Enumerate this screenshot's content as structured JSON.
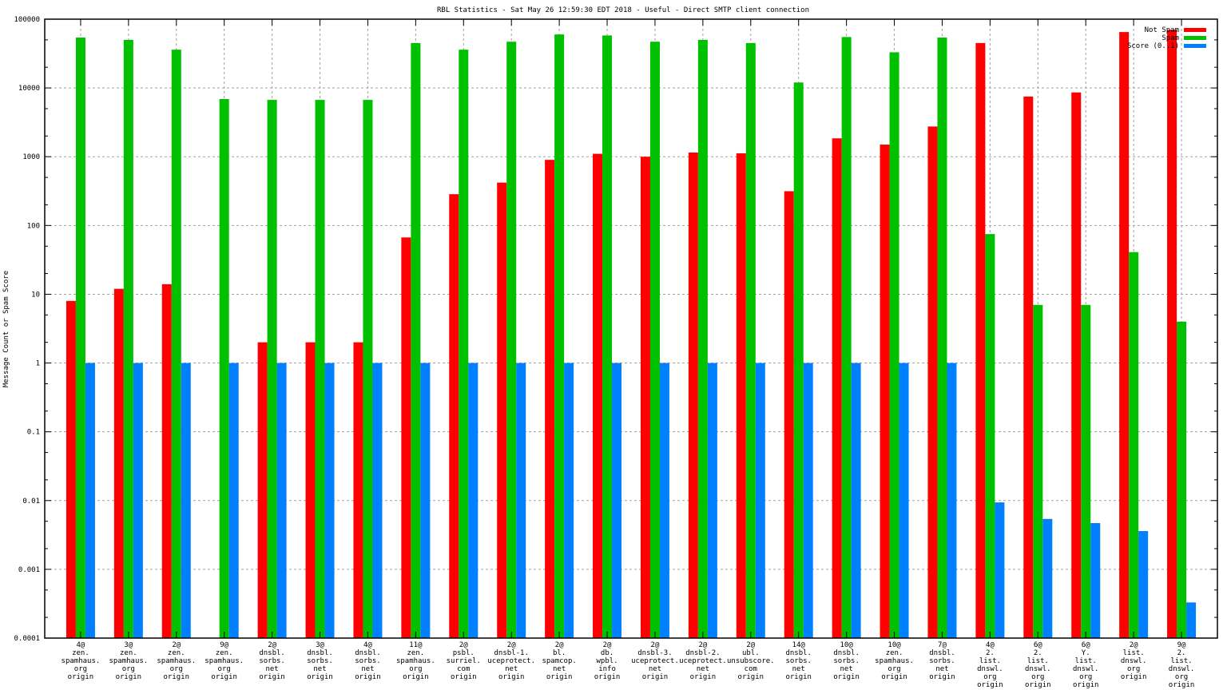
{
  "chart_data": {
    "type": "bar",
    "title": "RBL Statistics - Sat May 26 12:59:30 EDT 2018 - Useful - Direct SMTP client connection",
    "xlabel": "",
    "ylabel": "Message Count or Spam Score",
    "yscale": "log",
    "ylim": [
      0.0001,
      100000
    ],
    "yticks": [
      "0.0001",
      "0.001",
      "0.01",
      "0.1",
      "1",
      "10",
      "100",
      "1000",
      "10000",
      "100000"
    ],
    "ytick_values": [
      0.0001,
      0.001,
      0.01,
      0.1,
      1,
      10,
      100,
      1000,
      10000,
      100000
    ],
    "grid": true,
    "legend_position": "top-right",
    "categories": [
      [
        "4@",
        "zen.",
        "spamhaus.",
        "org",
        "origin"
      ],
      [
        "3@",
        "zen.",
        "spamhaus.",
        "org",
        "origin"
      ],
      [
        "2@",
        "zen.",
        "spamhaus.",
        "org",
        "origin"
      ],
      [
        "9@",
        "zen.",
        "spamhaus.",
        "org",
        "origin"
      ],
      [
        "2@",
        "dnsbl.",
        "sorbs.",
        "net",
        "origin"
      ],
      [
        "3@",
        "dnsbl.",
        "sorbs.",
        "net",
        "origin"
      ],
      [
        "4@",
        "dnsbl.",
        "sorbs.",
        "net",
        "origin"
      ],
      [
        "11@",
        "zen.",
        "spamhaus.",
        "org",
        "origin"
      ],
      [
        "2@",
        "psbl.",
        "surriel.",
        "com",
        "origin"
      ],
      [
        "2@",
        "dnsbl-1.",
        "uceprotect.",
        "net",
        "origin"
      ],
      [
        "2@",
        "bl.",
        "spamcop.",
        "net",
        "origin"
      ],
      [
        "2@",
        "db.",
        "wpbl.",
        "info",
        "origin"
      ],
      [
        "2@",
        "dnsbl-3.",
        "uceprotect.",
        "net",
        "origin"
      ],
      [
        "2@",
        "dnsbl-2.",
        "uceprotect.",
        "net",
        "origin"
      ],
      [
        "2@",
        "ubl.",
        "unsubscore.",
        "com",
        "origin"
      ],
      [
        "14@",
        "dnsbl.",
        "sorbs.",
        "net",
        "origin"
      ],
      [
        "10@",
        "dnsbl.",
        "sorbs.",
        "net",
        "origin"
      ],
      [
        "10@",
        "zen.",
        "spamhaus.",
        "org",
        "origin"
      ],
      [
        "7@",
        "dnsbl.",
        "sorbs.",
        "net",
        "origin"
      ],
      [
        "4@",
        "2.",
        "list.",
        "dnswl.",
        "org",
        "origin"
      ],
      [
        "6@",
        "2.",
        "list.",
        "dnswl.",
        "org",
        "origin"
      ],
      [
        "6@",
        "Y.",
        "list.",
        "dnswl.",
        "org",
        "origin"
      ],
      [
        "2@",
        "list.",
        "dnswl.",
        "org",
        "origin"
      ],
      [
        "9@",
        "2.",
        "list.",
        "dnswl.",
        "org",
        "origin"
      ]
    ],
    "series": [
      {
        "name": "Not Spam",
        "color": "#ff0000",
        "values": [
          8,
          12,
          14,
          0,
          2,
          2,
          2,
          67,
          285,
          420,
          900,
          1100,
          1000,
          1150,
          1120,
          315,
          1850,
          1500,
          2750,
          45000,
          7500,
          8600,
          65000,
          70000
        ]
      },
      {
        "name": "Spam",
        "color": "#00c000",
        "values": [
          54000,
          50000,
          36000,
          6900,
          6700,
          6700,
          6700,
          45000,
          36000,
          47000,
          60000,
          58000,
          47000,
          50000,
          45000,
          12000,
          55000,
          33000,
          54000,
          75,
          7,
          7,
          41,
          4
        ]
      },
      {
        "name": "Score (0..1)",
        "color": "#0080ff",
        "values": [
          1,
          1,
          1,
          1,
          1,
          1,
          1,
          1,
          1,
          1,
          1,
          1,
          1,
          1,
          1,
          1,
          1,
          1,
          1,
          0.0094,
          0.0054,
          0.0047,
          0.0036,
          0.00033
        ]
      }
    ]
  }
}
